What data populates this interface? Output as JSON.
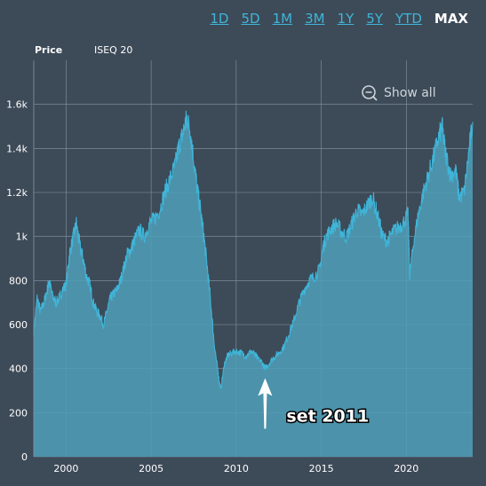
{
  "range_buttons": [
    "1D",
    "5D",
    "1M",
    "3M",
    "1Y",
    "5Y",
    "YTD",
    "MAX"
  ],
  "active_range": "MAX",
  "legend": {
    "price_label": "Price",
    "series_label": "ISEQ 20"
  },
  "show_all_label": "Show all",
  "annotation": {
    "text": "set 2011",
    "x": 2011.7,
    "y": 385
  },
  "colors": {
    "background": "#3d4a58",
    "line": "#3fb5d8",
    "fill": "#4f9fba",
    "grid": "#8796a4",
    "text": "#ffffff"
  },
  "chart_data": {
    "type": "area",
    "title": "",
    "xlabel": "",
    "ylabel": "",
    "series_name": "ISEQ 20",
    "xlim": [
      1998.1,
      2023.9
    ],
    "ylim": [
      0,
      1800
    ],
    "x_ticks": [
      2000,
      2005,
      2010,
      2015,
      2020
    ],
    "x_tick_labels": [
      "2000",
      "2005",
      "2010",
      "2015",
      "2020"
    ],
    "y_ticks": [
      0,
      200,
      400,
      600,
      800,
      1000,
      1200,
      1400,
      1600
    ],
    "y_tick_labels": [
      "0",
      "200",
      "400",
      "600",
      "800",
      "1k",
      "1.2k",
      "1.4k",
      "1.6k"
    ],
    "grid": true,
    "x": [
      1998.1,
      1998.3,
      1998.5,
      1998.7,
      1998.9,
      1999.0,
      1999.2,
      1999.4,
      1999.6,
      1999.8,
      2000.0,
      2000.2,
      2000.4,
      2000.6,
      2000.8,
      2001.0,
      2001.2,
      2001.4,
      2001.6,
      2001.8,
      2002.0,
      2002.2,
      2002.4,
      2002.6,
      2002.8,
      2003.0,
      2003.2,
      2003.4,
      2003.6,
      2003.8,
      2004.0,
      2004.3,
      2004.6,
      2004.9,
      2005.2,
      2005.5,
      2005.8,
      2006.1,
      2006.4,
      2006.6,
      2006.8,
      2007.0,
      2007.1,
      2007.3,
      2007.5,
      2007.7,
      2007.9,
      2008.1,
      2008.3,
      2008.5,
      2008.7,
      2008.9,
      2009.0,
      2009.1,
      2009.3,
      2009.5,
      2009.7,
      2010.0,
      2010.3,
      2010.6,
      2010.9,
      2011.2,
      2011.5,
      2011.7,
      2011.9,
      2012.2,
      2012.5,
      2012.8,
      2013.1,
      2013.4,
      2013.7,
      2014.0,
      2014.3,
      2014.6,
      2014.9,
      2015.1,
      2015.3,
      2015.6,
      2015.9,
      2016.2,
      2016.5,
      2016.8,
      2017.1,
      2017.4,
      2017.7,
      2018.0,
      2018.3,
      2018.6,
      2018.9,
      2019.2,
      2019.5,
      2019.8,
      2020.1,
      2020.2,
      2020.4,
      2020.7,
      2021.0,
      2021.3,
      2021.6,
      2021.9,
      2022.1,
      2022.3,
      2022.6,
      2022.9,
      2023.1,
      2023.4,
      2023.7,
      2023.9
    ],
    "values": [
      570,
      720,
      660,
      700,
      760,
      800,
      730,
      700,
      720,
      760,
      780,
      920,
      990,
      1060,
      960,
      900,
      820,
      780,
      700,
      660,
      640,
      600,
      660,
      720,
      740,
      760,
      800,
      860,
      920,
      940,
      980,
      1030,
      1000,
      1060,
      1080,
      1120,
      1200,
      1260,
      1320,
      1400,
      1450,
      1510,
      1540,
      1480,
      1350,
      1220,
      1120,
      1000,
      860,
      700,
      520,
      400,
      340,
      310,
      420,
      460,
      470,
      480,
      470,
      460,
      480,
      450,
      430,
      400,
      420,
      450,
      470,
      500,
      560,
      620,
      700,
      760,
      800,
      820,
      850,
      950,
      1000,
      1040,
      1060,
      1020,
      1000,
      1060,
      1120,
      1100,
      1140,
      1180,
      1100,
      1000,
      980,
      1020,
      1040,
      1060,
      1100,
      820,
      960,
      1100,
      1200,
      1280,
      1360,
      1450,
      1500,
      1380,
      1280,
      1300,
      1180,
      1200,
      1400,
      1520
    ]
  }
}
